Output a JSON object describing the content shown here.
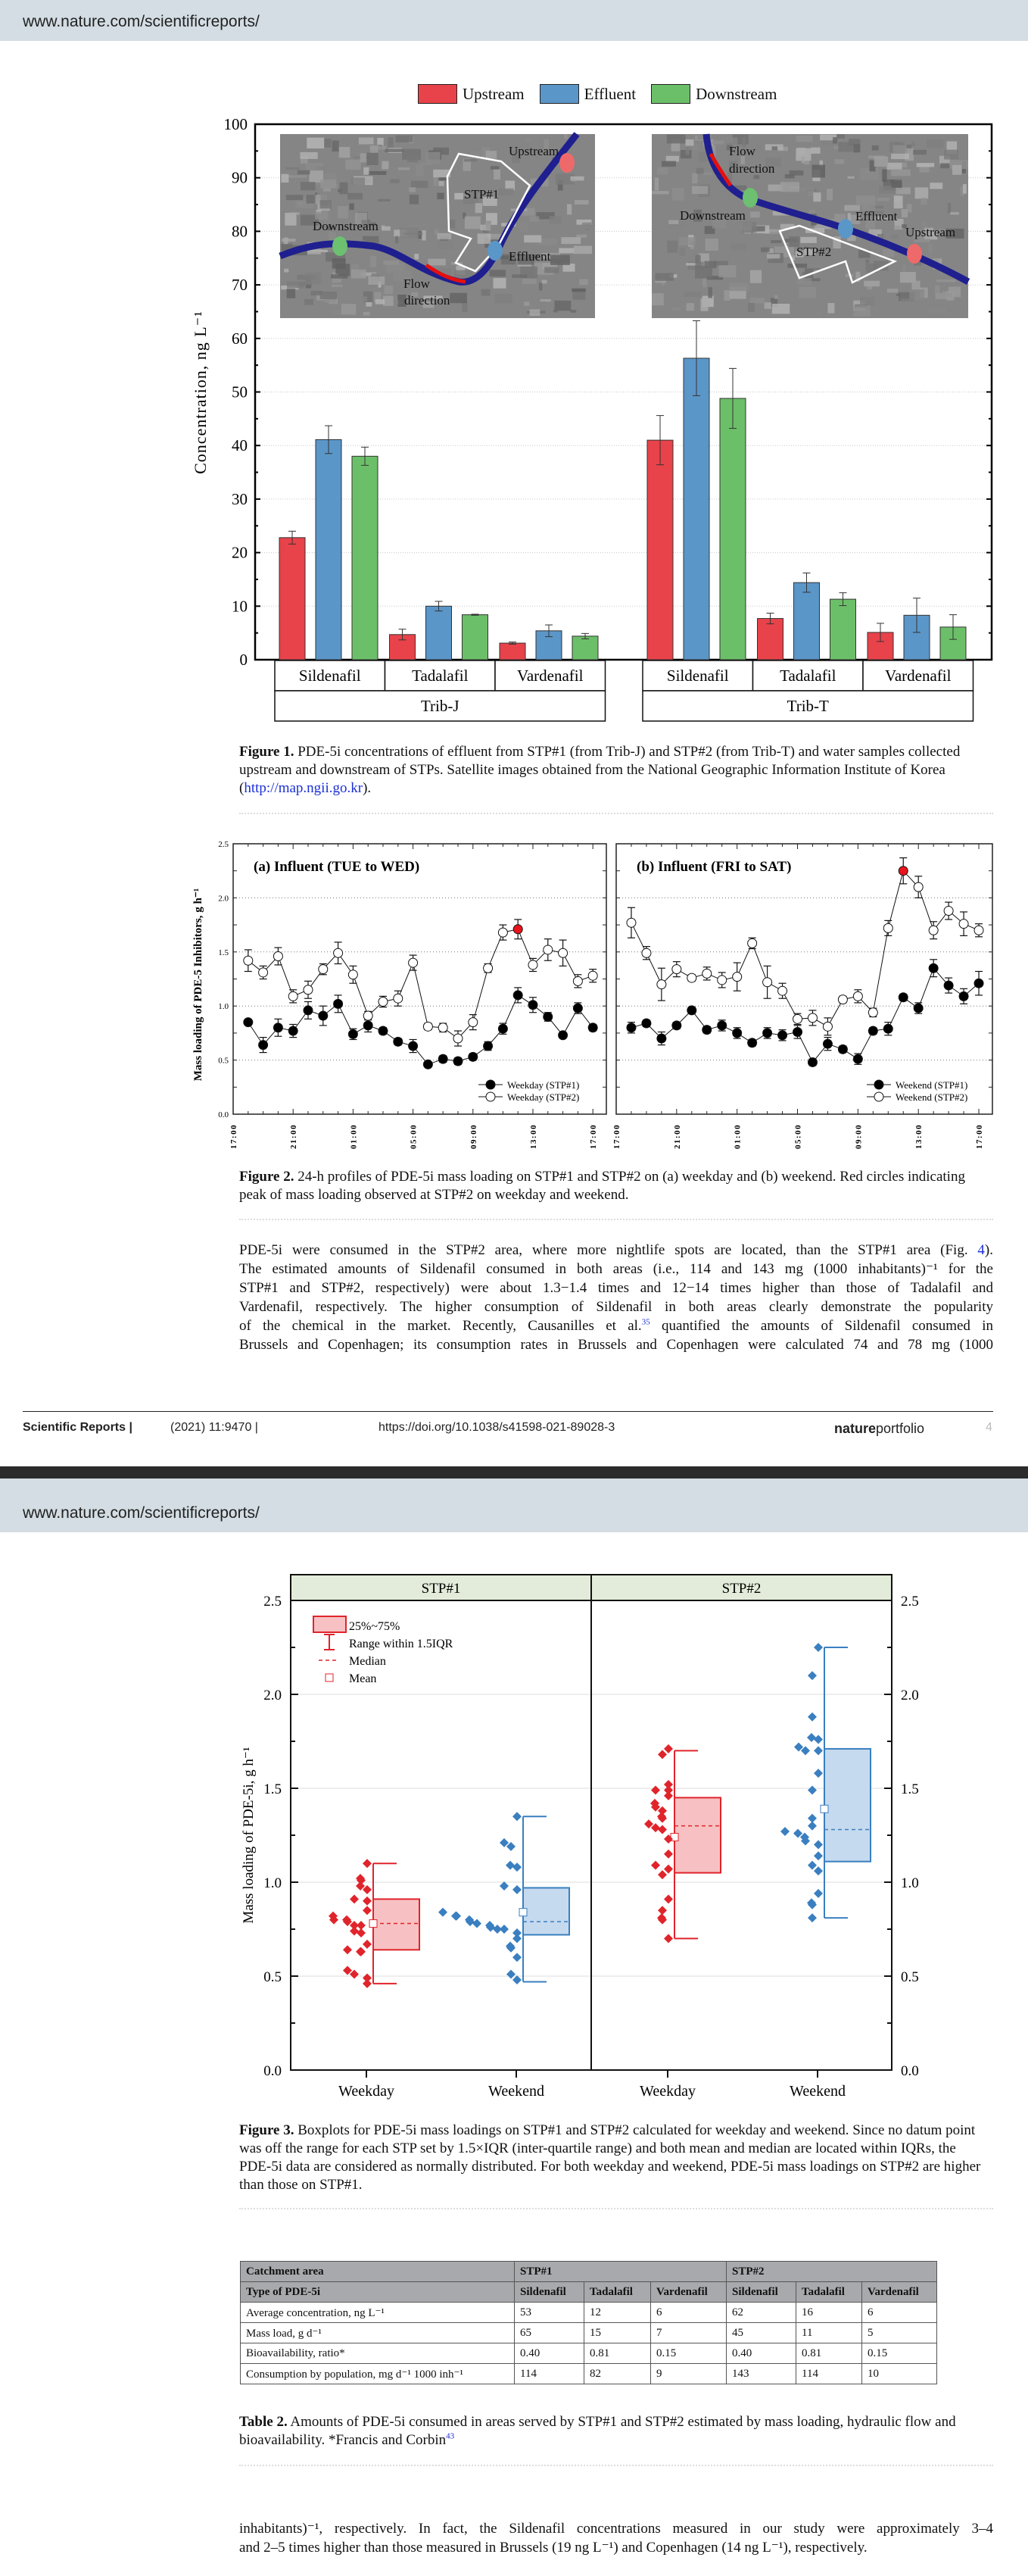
{
  "page1": {
    "header_url": "www.nature.com/scientificreports/",
    "figure1_caption": {
      "label": "Figure 1.",
      "text": " PDE-5i concentrations of effluent from STP#1 (from Trib-J) and STP#2 (from Trib-T) and water samples collected upstream and downstream of STPs. Satellite images obtained from the National Geographic Information Institute of Korea (",
      "link": "http://map.ngii.go.kr",
      "end": ")."
    },
    "figure2_caption": {
      "label": "Figure 2.",
      "text": " 24-h profiles of PDE-5i mass loading on STP#1 and STP#2 on (a) weekday and (b) weekend. Red circles indicating peak of mass loading observed at STP#2 on weekday and weekend."
    },
    "paragraph": {
      "l1": "PDE-5i were consumed in the STP#2 area, where more nightlife spots are located, than the STP#1 area (Fig. ",
      "l1_link": "4",
      "l1_end": ").",
      "l2": "The estimated amounts of Sildenafil consumed in both areas (i.e., 114 and 143 mg (1000 inhabitants)⁻¹ for the",
      "l3": "STP#1 and STP#2, respectively) were about 1.3−1.4 times and 12−14 times higher than those of Tadalafil and",
      "l4": "Vardenafil, respectively. The higher consumption of Sildenafil in both areas clearly demonstrate the popularity",
      "l5a": "of the chemical in the market. Recently, Causanilles et al.",
      "l5_ref": "35",
      "l5b": " quantified the amounts of Sildenafil consumed in",
      "l6": "Brussels and Copenhagen; its consumption rates in Brussels and Copenhagen were calculated 74 and 78 mg (1000"
    },
    "footer": {
      "journal": "Scientific Reports |",
      "citation": "(2021) 11:9470 |",
      "doi": "https://doi.org/10.1038/s41598-021-89028-3",
      "brand_bold": "nature",
      "brand_light": "portfolio",
      "page": "4"
    }
  },
  "page2": {
    "header_url": "www.nature.com/scientificreports/",
    "figure3_caption": {
      "label": "Figure 3.",
      "text": " Boxplots for PDE-5i mass loadings on STP#1 and STP#2 calculated for weekday and weekend. Since no datum point was off the range for each STP set by 1.5×IQR (inter-quartile range) and both mean and median are located within IQRs, the PDE-5i data are considered as normally distributed. For both weekday and weekend, PDE-5i mass loadings on STP#2 are higher than those on STP#1."
    },
    "table2": {
      "header1": [
        "Catchment area",
        "STP#1",
        "STP#2"
      ],
      "header2": [
        "Type of PDE-5i",
        "Sildenafil",
        "Tadalafil",
        "Vardenafil",
        "Sildenafil",
        "Tadalafil",
        "Vardenafil"
      ],
      "rows": [
        [
          "Average concentration, ng L⁻¹",
          "53",
          "12",
          "6",
          "62",
          "16",
          "6"
        ],
        [
          "Mass load, g d⁻¹",
          "65",
          "15",
          "7",
          "45",
          "11",
          "5"
        ],
        [
          "Bioavailability, ratio*",
          "0.40",
          "0.81",
          "0.15",
          "0.40",
          "0.81",
          "0.15"
        ],
        [
          "Consumption by population, mg d⁻¹ 1000 inh⁻¹",
          "114",
          "82",
          "9",
          "143",
          "114",
          "10"
        ]
      ],
      "caption_label": "Table 2.",
      "caption_text": " Amounts of PDE-5i consumed in areas served by STP#1 and STP#2 estimated by mass loading, hydraulic flow and bioavailability. *Francis and Corbin",
      "caption_ref": "43"
    },
    "paragraph": {
      "l1": "inhabitants)⁻¹, respectively. In fact, the Sildenafil concentrations measured in our study were approximately 3–4",
      "l2": "and 2–5 times higher than those measured in Brussels (19 ng L⁻¹) and Copenhagen (14 ng L⁻¹), respectively."
    }
  },
  "chart_data": [
    {
      "id": "figure1",
      "type": "bar",
      "title": "",
      "ylabel": "Concentration, ng L⁻¹",
      "ylim": [
        0,
        100
      ],
      "yticks": [
        "0",
        "10",
        "20",
        "30",
        "40",
        "50",
        "60",
        "70",
        "80",
        "90",
        "100"
      ],
      "grid": true,
      "legend": [
        "Upstream",
        "Effluent",
        "Downstream"
      ],
      "legend_placement": "top-center",
      "colors": {
        "Upstream": "#e8434a",
        "Effluent": "#5b96c8",
        "Downstream": "#6cbf69"
      },
      "groups": [
        {
          "name": "Trib-J",
          "categories": [
            "Sildenafil",
            "Tadalafil",
            "Vardenafil"
          ],
          "series": [
            {
              "name": "Upstream",
              "values": [
                22.8,
                4.7,
                3.1
              ],
              "errors": [
                1.2,
                1.0,
                0.2
              ]
            },
            {
              "name": "Effluent",
              "values": [
                41.1,
                10.0,
                5.4
              ],
              "errors": [
                2.6,
                0.9,
                1.1
              ]
            },
            {
              "name": "Downstream",
              "values": [
                38.0,
                8.4,
                4.4
              ],
              "errors": [
                1.7,
                0.1,
                0.5
              ]
            }
          ]
        },
        {
          "name": "Trib-T",
          "categories": [
            "Sildenafil",
            "Tadalafil",
            "Vardenafil"
          ],
          "series": [
            {
              "name": "Upstream",
              "values": [
                41.0,
                7.7,
                5.1
              ],
              "errors": [
                4.6,
                1.0,
                1.7
              ]
            },
            {
              "name": "Effluent",
              "values": [
                56.3,
                14.4,
                8.3
              ],
              "errors": [
                7.0,
                1.8,
                3.2
              ]
            },
            {
              "name": "Downstream",
              "values": [
                48.8,
                11.3,
                6.1
              ],
              "errors": [
                5.6,
                1.2,
                2.3
              ]
            }
          ]
        }
      ],
      "map_labels": {
        "left": {
          "upstream": "Upstream",
          "stp": "STP#1",
          "downstream": "Downstream",
          "effluent": "Effluent",
          "flow1": "Flow",
          "flow2": "direction"
        },
        "right": {
          "upstream": "Upstream",
          "stp": "STP#2",
          "downstream": "Downstream",
          "effluent": "Effluent",
          "flow1": "Flow",
          "flow2": "direction"
        }
      }
    },
    {
      "id": "figure2",
      "type": "line",
      "ylabel": "Mass loading of PDE-5 Inhibitors, g h⁻¹",
      "ylim": [
        0,
        2.5
      ],
      "yticks": [
        "0.0",
        "0.5",
        "1.0",
        "1.5",
        "2.0",
        "2.5"
      ],
      "xticks": [
        "17:00",
        "21:00",
        "01:00",
        "05:00",
        "09:00",
        "13:00",
        "17:00"
      ],
      "x_hours": [
        1,
        2,
        3,
        4,
        5,
        6,
        7,
        8,
        9,
        10,
        11,
        12,
        13,
        14,
        15,
        16,
        17,
        18,
        19,
        20,
        21,
        22,
        23,
        24
      ],
      "peak_color": "#e8141b",
      "panels": [
        {
          "title": "(a) Influent (TUE to WED)",
          "series": [
            {
              "name": "Weekday (STP#1)",
              "marker": "filled",
              "values": [
                0.85,
                0.64,
                0.8,
                0.77,
                0.96,
                0.91,
                1.02,
                0.74,
                0.82,
                0.77,
                0.67,
                0.63,
                0.46,
                0.51,
                0.49,
                0.53,
                0.63,
                0.79,
                1.1,
                1.01,
                0.9,
                0.73,
                0.98,
                0.8
              ],
              "errors": [
                0.02,
                0.07,
                0.08,
                0.06,
                0.08,
                0.09,
                0.08,
                0.05,
                0.06,
                0.03,
                0.03,
                0.06,
                0.02,
                0.03,
                0.03,
                0.03,
                0.04,
                0.05,
                0.07,
                0.07,
                0.04,
                0.02,
                0.05,
                0.03
              ]
            },
            {
              "name": "Weekday (STP#2)",
              "marker": "open",
              "peak_index": 18,
              "values": [
                1.42,
                1.31,
                1.46,
                1.09,
                1.15,
                1.34,
                1.49,
                1.29,
                0.91,
                1.04,
                1.07,
                1.4,
                0.81,
                0.8,
                0.7,
                0.85,
                1.35,
                1.68,
                1.71,
                1.38,
                1.52,
                1.49,
                1.23,
                1.28
              ],
              "errors": [
                0.1,
                0.06,
                0.08,
                0.06,
                0.08,
                0.05,
                0.1,
                0.08,
                0.04,
                0.05,
                0.07,
                0.07,
                0.03,
                0.04,
                0.07,
                0.07,
                0.04,
                0.07,
                0.09,
                0.06,
                0.1,
                0.12,
                0.06,
                0.06
              ]
            }
          ]
        },
        {
          "title": "(b) Influent (FRI to SAT)",
          "series": [
            {
              "name": "Weekend (STP#1)",
              "marker": "filled",
              "values": [
                0.8,
                0.84,
                0.7,
                0.82,
                0.96,
                0.78,
                0.82,
                0.75,
                0.66,
                0.75,
                0.73,
                0.76,
                0.48,
                0.65,
                0.6,
                0.51,
                0.77,
                0.79,
                1.08,
                0.98,
                1.35,
                1.19,
                1.09,
                1.21
              ],
              "errors": [
                0.05,
                0.03,
                0.06,
                0.03,
                0.03,
                0.03,
                0.05,
                0.05,
                0.03,
                0.05,
                0.05,
                0.06,
                0.03,
                0.06,
                0.03,
                0.05,
                0.03,
                0.06,
                0.03,
                0.05,
                0.08,
                0.07,
                0.07,
                0.11
              ]
            },
            {
              "name": "Weekend (STP#2)",
              "marker": "open",
              "peak_index": 18,
              "values": [
                1.77,
                1.49,
                1.2,
                1.34,
                1.26,
                1.3,
                1.24,
                1.27,
                1.58,
                1.22,
                1.14,
                0.88,
                0.89,
                0.81,
                1.06,
                1.09,
                0.94,
                1.72,
                2.25,
                2.1,
                1.7,
                1.88,
                1.76,
                1.7
              ],
              "errors": [
                0.14,
                0.06,
                0.15,
                0.07,
                0.03,
                0.06,
                0.07,
                0.13,
                0.05,
                0.15,
                0.07,
                0.05,
                0.07,
                0.08,
                0.03,
                0.06,
                0.04,
                0.07,
                0.12,
                0.1,
                0.08,
                0.08,
                0.11,
                0.06
              ]
            }
          ]
        }
      ]
    },
    {
      "id": "figure3",
      "type": "box",
      "ylabel": "Mass loading of PDE-5i, g h⁻¹",
      "ylim": [
        0,
        2.5
      ],
      "yticks": [
        "0.0",
        "0.5",
        "1.0",
        "1.5",
        "2.0",
        "2.5"
      ],
      "panels": [
        "STP#1",
        "STP#2"
      ],
      "legend": [
        "25%~75%",
        "Range within 1.5IQR",
        "Median",
        "Mean"
      ],
      "legend_placement": "top-left",
      "colors": {
        "Weekday": "#e0242b",
        "Weekday_fill": "#f7c1c3",
        "Weekend": "#3a7fc0",
        "Weekend_fill": "#c6daef"
      },
      "boxes": [
        {
          "panel": "STP#1",
          "category": "Weekday",
          "q1": 0.64,
          "q3": 0.91,
          "median": 0.78,
          "mean": 0.78,
          "whisker_low": 0.46,
          "whisker_high": 1.1,
          "points": [
            0.85,
            0.64,
            0.8,
            0.77,
            0.96,
            0.91,
            1.02,
            0.74,
            0.82,
            0.77,
            0.67,
            0.63,
            0.46,
            0.51,
            0.49,
            0.53,
            0.63,
            0.79,
            1.1,
            1.01,
            0.9,
            0.73,
            0.98,
            0.8
          ]
        },
        {
          "panel": "STP#1",
          "category": "Weekend",
          "q1": 0.72,
          "q3": 0.97,
          "median": 0.79,
          "mean": 0.84,
          "whisker_low": 0.47,
          "whisker_high": 1.35,
          "points": [
            0.8,
            0.84,
            0.7,
            0.82,
            0.96,
            0.78,
            0.82,
            0.75,
            0.66,
            0.75,
            0.73,
            0.76,
            0.48,
            0.65,
            0.6,
            0.51,
            0.77,
            0.79,
            1.08,
            0.98,
            1.35,
            1.19,
            1.09,
            1.21
          ]
        },
        {
          "panel": "STP#2",
          "category": "Weekday",
          "q1": 1.05,
          "q3": 1.45,
          "median": 1.3,
          "mean": 1.24,
          "whisker_low": 0.7,
          "whisker_high": 1.7,
          "points": [
            1.42,
            1.31,
            1.46,
            1.09,
            1.15,
            1.34,
            1.49,
            1.29,
            0.91,
            1.04,
            1.07,
            1.4,
            0.81,
            0.8,
            0.7,
            0.85,
            1.35,
            1.68,
            1.71,
            1.38,
            1.52,
            1.49,
            1.23,
            1.28
          ]
        },
        {
          "panel": "STP#2",
          "category": "Weekend",
          "q1": 1.11,
          "q3": 1.71,
          "median": 1.28,
          "mean": 1.39,
          "whisker_low": 0.81,
          "whisker_high": 2.25,
          "points": [
            1.77,
            1.49,
            1.2,
            1.34,
            1.26,
            1.3,
            1.24,
            1.27,
            1.58,
            1.22,
            1.14,
            0.88,
            0.89,
            0.81,
            1.06,
            1.09,
            0.94,
            1.72,
            2.25,
            2.1,
            1.7,
            1.88,
            1.76,
            1.7
          ]
        }
      ]
    }
  ]
}
